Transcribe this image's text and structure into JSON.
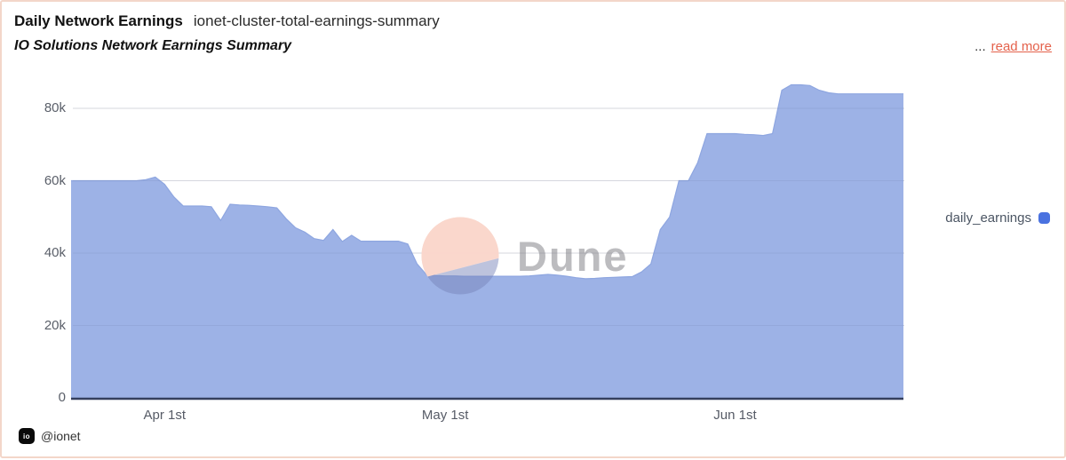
{
  "header": {
    "title": "Daily Network Earnings",
    "slug": "ionet-cluster-total-earnings-summary",
    "subtitle": "IO Solutions Network Earnings Summary",
    "ellipsis": "...",
    "read_more": "read more"
  },
  "legend": {
    "label": "daily_earnings",
    "color": "#4a72e0"
  },
  "watermark": {
    "text": "Dune"
  },
  "footer": {
    "logo_text": "io",
    "handle": "@ionet"
  },
  "colors": {
    "area_fill": "#9db2e6",
    "area_edge": "#8ea6e0",
    "baseline": "#343f5e",
    "gridline": "#e7e7ea",
    "accent_link": "#e4614b",
    "border": "#f3d6c9"
  },
  "chart_data": {
    "type": "area",
    "title": "Daily Network Earnings",
    "series_name": "daily_earnings",
    "grid": true,
    "legend_position": "right",
    "ylim": [
      0,
      88000
    ],
    "yticks": [
      {
        "label": "0",
        "value": 0
      },
      {
        "label": "20k",
        "value": 20000
      },
      {
        "label": "40k",
        "value": 40000
      },
      {
        "label": "60k",
        "value": 60000
      },
      {
        "label": "80k",
        "value": 80000
      }
    ],
    "xticks": [
      {
        "label": "Apr 1st",
        "index": 10
      },
      {
        "label": "May 1st",
        "index": 40
      },
      {
        "label": "Jun 1st",
        "index": 71
      }
    ],
    "x": [
      "Mar 22",
      "Mar 23",
      "Mar 24",
      "Mar 25",
      "Mar 26",
      "Mar 27",
      "Mar 28",
      "Mar 29",
      "Mar 30",
      "Mar 31",
      "Apr 1",
      "Apr 2",
      "Apr 3",
      "Apr 4",
      "Apr 5",
      "Apr 6",
      "Apr 7",
      "Apr 8",
      "Apr 9",
      "Apr 10",
      "Apr 11",
      "Apr 12",
      "Apr 13",
      "Apr 14",
      "Apr 15",
      "Apr 16",
      "Apr 17",
      "Apr 18",
      "Apr 19",
      "Apr 20",
      "Apr 21",
      "Apr 22",
      "Apr 23",
      "Apr 24",
      "Apr 25",
      "Apr 26",
      "Apr 27",
      "Apr 28",
      "Apr 29",
      "Apr 30",
      "May 1",
      "May 2",
      "May 3",
      "May 4",
      "May 5",
      "May 6",
      "May 7",
      "May 8",
      "May 9",
      "May 10",
      "May 11",
      "May 12",
      "May 13",
      "May 14",
      "May 15",
      "May 16",
      "May 17",
      "May 18",
      "May 19",
      "May 20",
      "May 21",
      "May 22",
      "May 23",
      "May 24",
      "May 25",
      "May 26",
      "May 27",
      "May 28",
      "May 29",
      "May 30",
      "May 31",
      "Jun 1",
      "Jun 2",
      "Jun 3",
      "Jun 4",
      "Jun 5",
      "Jun 6",
      "Jun 7",
      "Jun 8",
      "Jun 9",
      "Jun 10",
      "Jun 11",
      "Jun 12",
      "Jun 13",
      "Jun 14",
      "Jun 15",
      "Jun 16",
      "Jun 17",
      "Jun 18",
      "Jun 19"
    ],
    "values_thousands": [
      60,
      60,
      60,
      60,
      60,
      60,
      60,
      60,
      60.3,
      61,
      59,
      55.5,
      53,
      53,
      53,
      52.8,
      49,
      53.5,
      53.3,
      53.2,
      53,
      52.8,
      52.5,
      49.5,
      47,
      45.8,
      44,
      43.5,
      46.5,
      43.2,
      44.9,
      43.3,
      43.3,
      43.3,
      43.3,
      43.3,
      42.5,
      37,
      34,
      33.8,
      33.7,
      33.7,
      33.6,
      33.6,
      33.6,
      33.6,
      33.6,
      33.6,
      33.6,
      33.7,
      33.9,
      34.1,
      33.9,
      33.6,
      33.2,
      32.9,
      33,
      33.2,
      33.3,
      33.4,
      33.5,
      34.8,
      37,
      46.5,
      50,
      60,
      60,
      65,
      73,
      73,
      73,
      73,
      72.8,
      72.7,
      72.5,
      73,
      85,
      86.5,
      86.5,
      86.3,
      85,
      84.3,
      84,
      84,
      84,
      84,
      84,
      84,
      84,
      84
    ]
  }
}
